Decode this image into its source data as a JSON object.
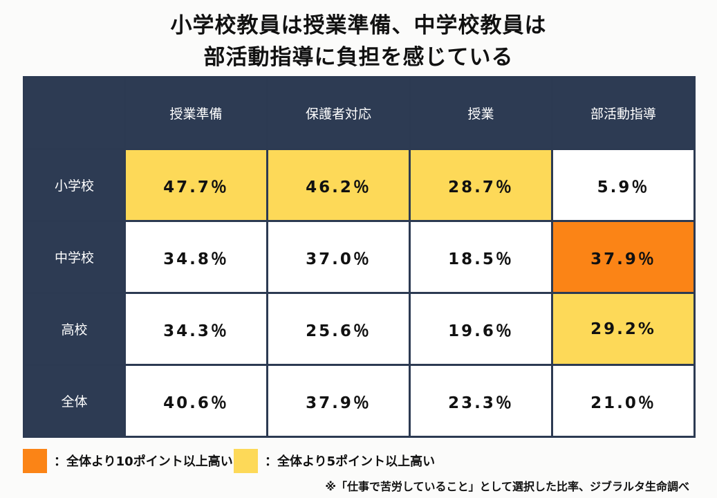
{
  "title": {
    "line1": "小学校教員は授業準備、中学校教員は",
    "line2": "部活動指導に負担を感じている"
  },
  "colors": {
    "header": "#2d3b53",
    "highlight_10pt": "#fb8416",
    "highlight_5pt": "#fdd958",
    "cell": "#ffffff"
  },
  "chart_data": {
    "type": "table",
    "columns": [
      "授業準備",
      "保護者対応",
      "授業",
      "部活動指導"
    ],
    "rows": [
      {
        "label": "小学校",
        "values": [
          "47.7％",
          "46.2％",
          "28.7％",
          "5.9％"
        ],
        "highlight": [
          "5pt",
          "5pt",
          "5pt",
          "none"
        ]
      },
      {
        "label": "中学校",
        "values": [
          "34.8％",
          "37.0％",
          "18.5％",
          "37.9％"
        ],
        "highlight": [
          "none",
          "none",
          "none",
          "10pt"
        ]
      },
      {
        "label": "高校",
        "values": [
          "34.3％",
          "25.6％",
          "19.6％",
          "29.2%"
        ],
        "highlight": [
          "none",
          "none",
          "none",
          "5pt"
        ]
      },
      {
        "label": "全体",
        "values": [
          "40.6％",
          "37.9％",
          "23.3％",
          "21.0％"
        ],
        "highlight": [
          "none",
          "none",
          "none",
          "none"
        ]
      }
    ]
  },
  "legend": {
    "orange_label": "：全体より10ポイント以上高い",
    "yellow_label": "：全体より5ポイント以上高い"
  },
  "footnote": "※「仕事で苦労していること」として選択した比率、ジブラルタ生命調べ"
}
